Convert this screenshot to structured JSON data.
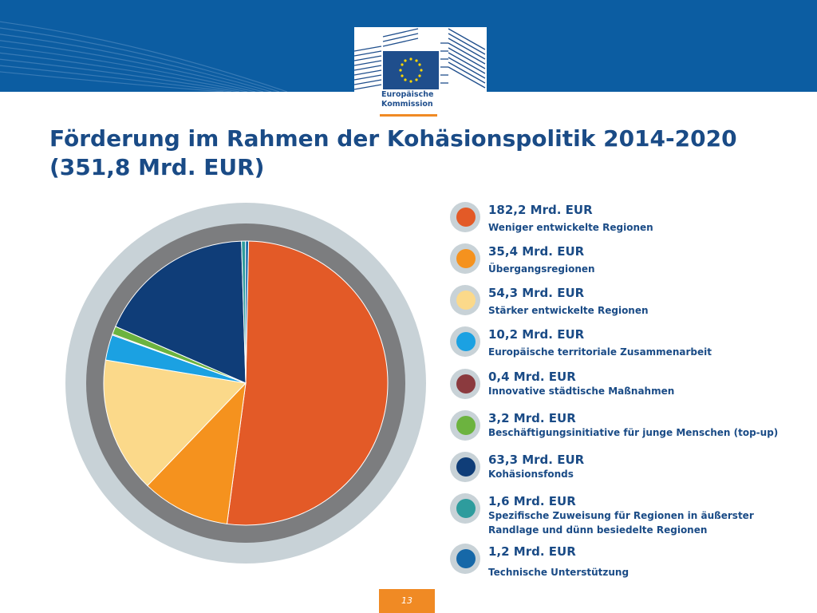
{
  "header": {
    "logo_line1": "Europäische",
    "logo_line2": "Kommission"
  },
  "title_line1": "Förderung im Rahmen der Kohäsionspolitik 2014-2020",
  "title_line2": "(351,8 Mrd. EUR)",
  "page_number": "13",
  "colors": {
    "header_blue": "#0c5da2",
    "title_blue": "#1a4b86",
    "accent_orange": "#f08a24"
  },
  "chart_data": {
    "type": "pie",
    "title": "Förderung im Rahmen der Kohäsionspolitik 2014-2020 (351,8 Mrd. EUR)",
    "unit": "Mrd. EUR",
    "legend_position": "right",
    "slices": [
      {
        "value": 182.2,
        "value_label": "182,2 Mrd. EUR",
        "label": "Weniger entwickelte Regionen",
        "color": "#e35a27"
      },
      {
        "value": 35.4,
        "value_label": "35,4 Mrd. EUR",
        "label": "Übergangsregionen",
        "color": "#f5921e"
      },
      {
        "value": 54.3,
        "value_label": "54,3 Mrd. EUR",
        "label": "Stärker entwickelte Regionen",
        "color": "#fbd98a"
      },
      {
        "value": 10.2,
        "value_label": "10,2 Mrd. EUR",
        "label": "Europäische territoriale Zusammenarbeit",
        "color": "#1ba1e2"
      },
      {
        "value": 0.4,
        "value_label": "0,4 Mrd. EUR",
        "label": "Innovative städtische Maßnahmen",
        "color": "#8b3a3e"
      },
      {
        "value": 3.2,
        "value_label": "3,2 Mrd. EUR",
        "label": "Beschäftigungsinitiative für junge Menschen (top-up)",
        "color": "#6cb33f"
      },
      {
        "value": 63.3,
        "value_label": "63,3 Mrd. EUR",
        "label": "Kohäsionsfonds",
        "color": "#0f3d78"
      },
      {
        "value": 1.6,
        "value_label": "1,6 Mrd. EUR",
        "label": "Spezifische Zuweisung für Regionen in äußerster Randlage und dünn besiedelte Regionen",
        "color": "#2e9c9d"
      },
      {
        "value": 1.2,
        "value_label": "1,2 Mrd. EUR",
        "label": "Technische Unterstützung",
        "color": "#1668a8"
      }
    ]
  }
}
